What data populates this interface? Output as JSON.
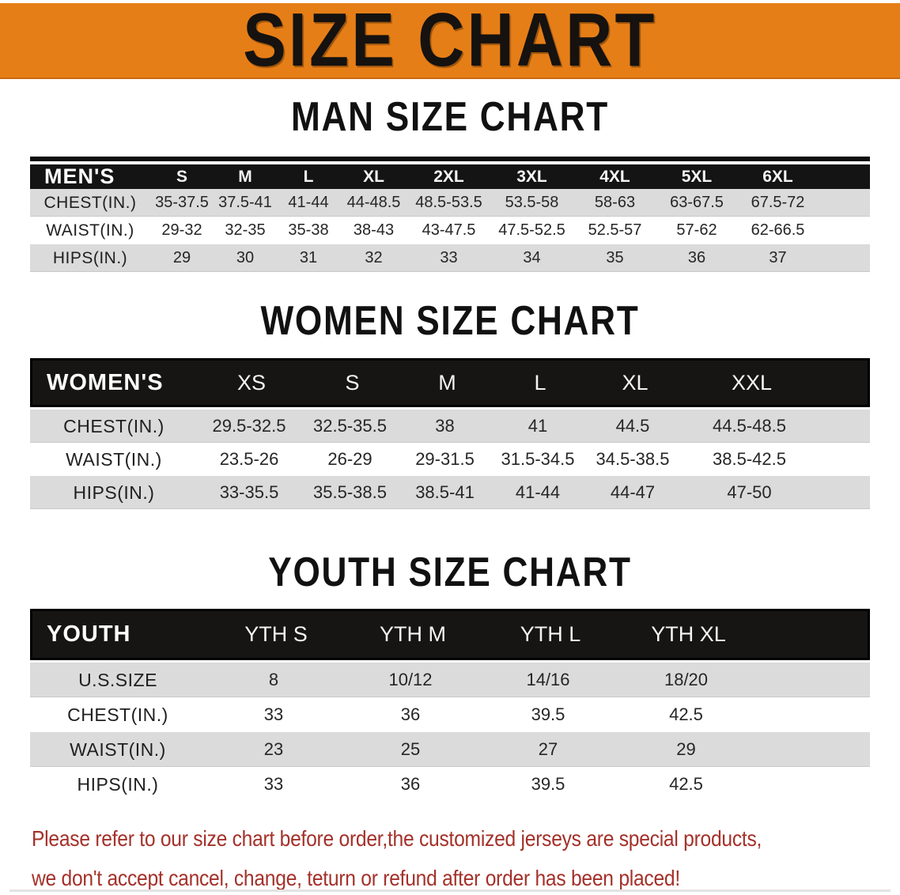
{
  "banner": {
    "title": "SIZE CHART",
    "bg_color": "#E67E17"
  },
  "sections": [
    {
      "heading": "MAN SIZE CHART",
      "table": {
        "header_label": "MEN'S",
        "columns": [
          "S",
          "M",
          "L",
          "XL",
          "2XL",
          "3XL",
          "4XL",
          "5XL",
          "6XL"
        ],
        "rows": [
          {
            "label": "CHEST(IN.)",
            "values": [
              "35-37.5",
              "37.5-41",
              "41-44",
              "44-48.5",
              "48.5-53.5",
              "53.5-58",
              "58-63",
              "63-67.5",
              "67.5-72"
            ]
          },
          {
            "label": "WAIST(IN.)",
            "values": [
              "29-32",
              "32-35",
              "35-38",
              "38-43",
              "43-47.5",
              "47.5-52.5",
              "52.5-57",
              "57-62",
              "62-66.5"
            ]
          },
          {
            "label": "HIPS(IN.)",
            "values": [
              "29",
              "30",
              "31",
              "32",
              "33",
              "34",
              "35",
              "36",
              "37"
            ]
          }
        ]
      }
    },
    {
      "heading": "WOMEN SIZE CHART",
      "table": {
        "header_label": "WOMEN'S",
        "columns": [
          "XS",
          "S",
          "M",
          "L",
          "XL",
          "XXL"
        ],
        "rows": [
          {
            "label": "CHEST(IN.)",
            "values": [
              "29.5-32.5",
              "32.5-35.5",
              "38",
              "41",
              "44.5",
              "44.5-48.5"
            ]
          },
          {
            "label": "WAIST(IN.)",
            "values": [
              "23.5-26",
              "26-29",
              "29-31.5",
              "31.5-34.5",
              "34.5-38.5",
              "38.5-42.5"
            ]
          },
          {
            "label": "HIPS(IN.)",
            "values": [
              "33-35.5",
              "35.5-38.5",
              "38.5-41",
              "41-44",
              "44-47",
              "47-50"
            ]
          }
        ]
      }
    },
    {
      "heading": "YOUTH SIZE CHART",
      "table": {
        "header_label": "YOUTH",
        "columns": [
          "YTH S",
          "YTH M",
          "YTH L",
          "YTH XL"
        ],
        "rows": [
          {
            "label": "U.S.SIZE",
            "values": [
              "8",
              "10/12",
              "14/16",
              "18/20"
            ]
          },
          {
            "label": "CHEST(IN.)",
            "values": [
              "33",
              "36",
              "39.5",
              "42.5"
            ]
          },
          {
            "label": "WAIST(IN.)",
            "values": [
              "23",
              "25",
              "27",
              "29"
            ]
          },
          {
            "label": "HIPS(IN.)",
            "values": [
              "33",
              "36",
              "39.5",
              "42.5"
            ]
          }
        ]
      }
    }
  ],
  "footer": {
    "lines": [
      "Please refer to our size chart before order,the customized jerseys are special products,",
      "we don't accept cancel, change, teturn or refund after order has been placed!"
    ],
    "text_color": "#A4312A"
  }
}
